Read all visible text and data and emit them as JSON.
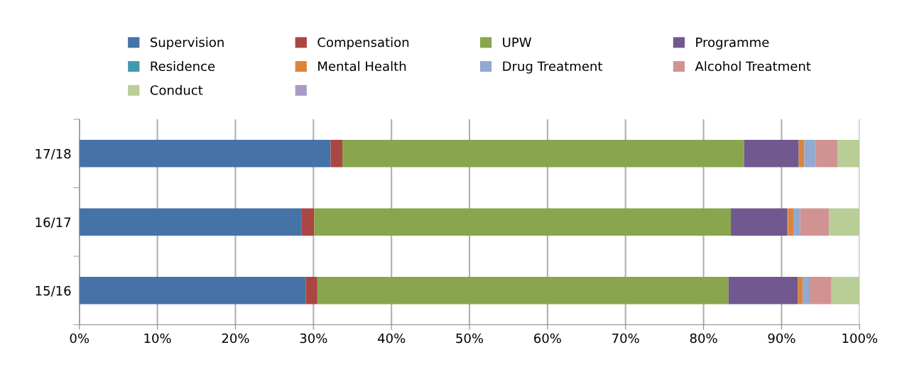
{
  "chart_data": {
    "type": "bar",
    "orientation": "horizontal",
    "stacked": true,
    "categories": [
      "17/18",
      "16/17",
      "15/16"
    ],
    "series": [
      {
        "name": "Supervision",
        "color": "#4572a7",
        "values": [
          32.2,
          28.5,
          29.0
        ]
      },
      {
        "name": "Compensation",
        "color": "#aa4643",
        "values": [
          1.5,
          1.6,
          1.5
        ]
      },
      {
        "name": "UPW",
        "color": "#89a54e",
        "values": [
          51.5,
          53.4,
          52.7
        ]
      },
      {
        "name": "Programme",
        "color": "#71588f",
        "values": [
          7.0,
          7.2,
          8.9
        ]
      },
      {
        "name": "Residence",
        "color": "#4198af",
        "values": [
          0,
          0.1,
          0
        ]
      },
      {
        "name": "Mental Health",
        "color": "#db843d",
        "values": [
          0.7,
          0.7,
          0.6
        ]
      },
      {
        "name": "Drug Treatment",
        "color": "#93a9cf",
        "values": [
          1.5,
          0.9,
          0.9
        ]
      },
      {
        "name": "Alcohol Treatment",
        "color": "#d19392",
        "values": [
          2.8,
          3.7,
          2.8
        ]
      },
      {
        "name": "Conduct",
        "color": "#b9cd96",
        "values": [
          2.8,
          3.9,
          3.6
        ]
      },
      {
        "name": null,
        "color": "#a99bc5",
        "values": [
          0,
          0,
          0
        ]
      }
    ],
    "xlim": [
      0,
      100
    ],
    "xticks": [
      {
        "value": 0,
        "label": "0%"
      },
      {
        "value": 10,
        "label": "10%"
      },
      {
        "value": 20,
        "label": "20%"
      },
      {
        "value": 30,
        "label": "30%"
      },
      {
        "value": 40,
        "label": "40%"
      },
      {
        "value": 50,
        "label": "50%"
      },
      {
        "value": 60,
        "label": "60%"
      },
      {
        "value": 70,
        "label": "70%"
      },
      {
        "value": 80,
        "label": "80%"
      },
      {
        "value": 90,
        "label": "90%"
      },
      {
        "value": 100,
        "label": "100%"
      }
    ],
    "grid": "x",
    "legend": "top"
  }
}
